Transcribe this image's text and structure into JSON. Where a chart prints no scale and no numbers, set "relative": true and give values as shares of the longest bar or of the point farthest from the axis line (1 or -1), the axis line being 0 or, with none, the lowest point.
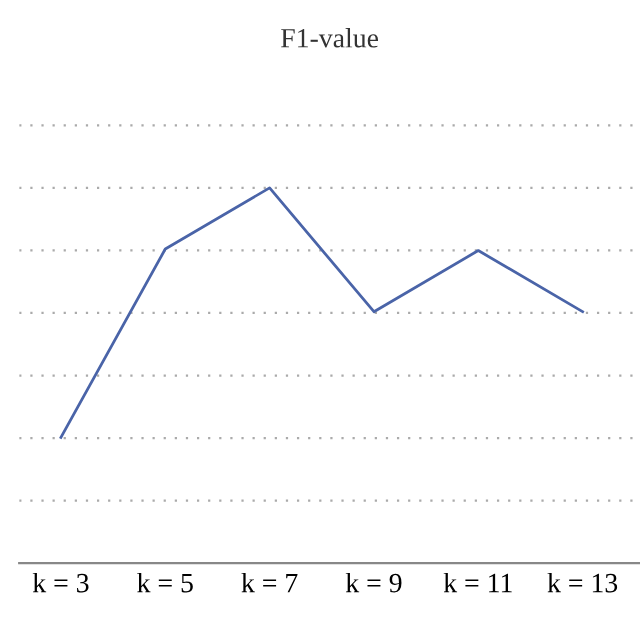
{
  "chart_data": {
    "type": "line",
    "title": "F1-value",
    "relative": true,
    "grid": "y",
    "line_style": "solid",
    "marker": "none",
    "categories": [
      "k = 3",
      "k = 5",
      "k = 7",
      "k = 9",
      "k = 11",
      "k = 13"
    ],
    "series": [
      {
        "color": "#4a64a8",
        "values": [
          0.335,
          0.837,
          1,
          0.67,
          0.833,
          0.67
        ]
      }
    ]
  }
}
